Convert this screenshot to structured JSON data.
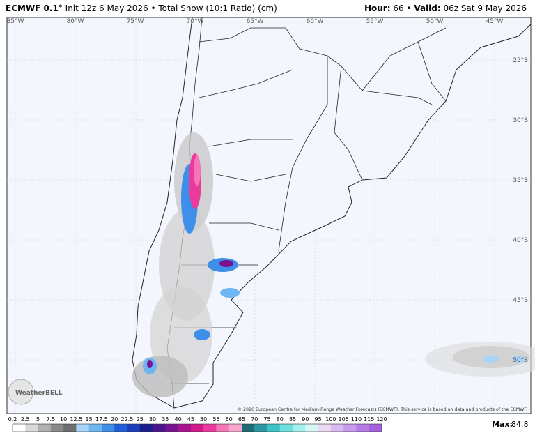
{
  "header": {
    "model": "ECMWF 0.1°",
    "subtitle": "Init 12z 6 May 2026 • Total Snow (10:1 Ratio) (cm)",
    "hour_label": "Hour:",
    "hour": "66",
    "separator": "•",
    "valid_label": "Valid:",
    "valid": "06z Sat 9 May 2026"
  },
  "map": {
    "longitude_labels": [
      "85°W",
      "80°W",
      "75°W",
      "70°W",
      "65°W",
      "60°W",
      "55°W",
      "50°W",
      "45°W"
    ],
    "latitude_labels": [
      "25°S",
      "30°S",
      "35°S",
      "40°S",
      "45°S",
      "50°S"
    ],
    "credit": "© 2026 European Centre for Medium-Range Weather Forecasts (ECMWF). This service is based on data and products of the ECMWF.",
    "logo": "WeatherBELL"
  },
  "colorbar": {
    "labels": [
      0.2,
      2.5,
      5,
      7.5,
      10,
      12.5,
      15,
      17.5,
      20,
      22.5,
      25,
      30,
      35,
      40,
      45,
      50,
      55,
      60,
      65,
      70,
      75,
      80,
      85,
      90,
      95,
      100,
      105,
      110,
      115,
      120
    ],
    "colors": [
      "#ffffff",
      "#d9d9d9",
      "#b0b0b0",
      "#8a8a8a",
      "#6e6e6e",
      "#a9d3f7",
      "#6eb5f2",
      "#3d8fea",
      "#1f5fd9",
      "#1a3fb8",
      "#1a1f8c",
      "#4b148f",
      "#7a1393",
      "#a8148f",
      "#d01a8a",
      "#ea3b9c",
      "#f576b6",
      "#f9a6cf",
      "#1e6c73",
      "#2a9aa0",
      "#3dc3c6",
      "#6fe0e0",
      "#a7efef",
      "#d6f6f6",
      "#e9d9f3",
      "#d9baf0",
      "#c79aec",
      "#b67ce6",
      "#a560e0"
    ],
    "max_label": "Max:",
    "max": 84.8
  }
}
